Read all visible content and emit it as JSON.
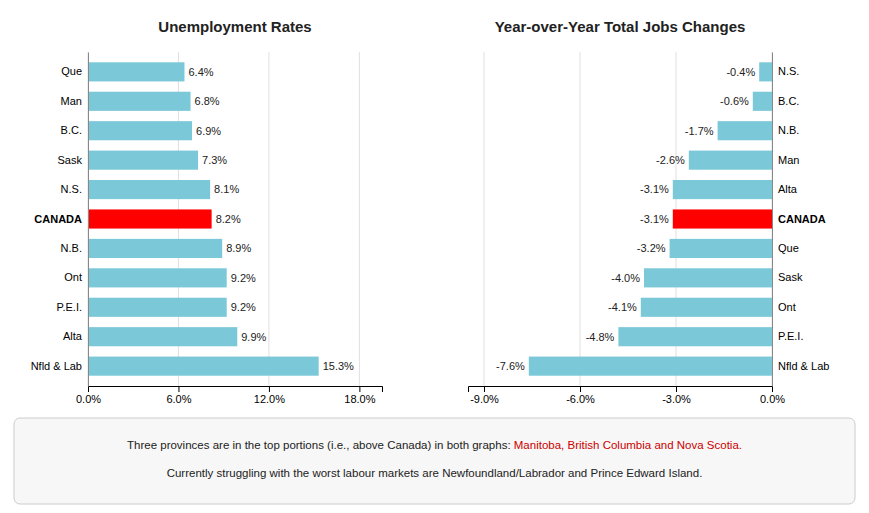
{
  "chart_data": [
    {
      "type": "bar",
      "orientation": "horizontal",
      "title": "Unemployment Rates",
      "categories": [
        "Que",
        "Man",
        "B.C.",
        "Sask",
        "N.S.",
        "CANADA",
        "N.B.",
        "Ont",
        "P.E.I.",
        "Alta",
        "Nfld & Lab"
      ],
      "values": [
        6.4,
        6.8,
        6.9,
        7.3,
        8.1,
        8.2,
        8.9,
        9.2,
        9.2,
        9.9,
        15.3
      ],
      "value_labels": [
        "6.4%",
        "6.8%",
        "6.9%",
        "7.3%",
        "8.1%",
        "8.2%",
        "8.9%",
        "9.2%",
        "9.2%",
        "9.9%",
        "15.3%"
      ],
      "colors": [
        "#7BC8D8",
        "#7BC8D8",
        "#7BC8D8",
        "#7BC8D8",
        "#7BC8D8",
        "#FF0000",
        "#7BC8D8",
        "#7BC8D8",
        "#7BC8D8",
        "#7BC8D8",
        "#7BC8D8"
      ],
      "xlim": [
        0,
        19.5
      ],
      "xticks": [
        {
          "value": 0,
          "label": "0.0%"
        },
        {
          "value": 6,
          "label": "6.0%"
        },
        {
          "value": 12,
          "label": "12.0%"
        },
        {
          "value": 18,
          "label": "18.0%"
        }
      ],
      "grid": true,
      "data_labels": true
    },
    {
      "type": "bar",
      "orientation": "horizontal",
      "title": "Year-over-Year Total Jobs Changes",
      "categories": [
        "N.S.",
        "B.C.",
        "N.B.",
        "Man",
        "Alta",
        "CANADA",
        "Que",
        "Sask",
        "Ont",
        "P.E.I.",
        "Nfld & Lab"
      ],
      "values": [
        -0.4,
        -0.6,
        -1.7,
        -2.6,
        -3.1,
        -3.1,
        -3.2,
        -4.0,
        -4.1,
        -4.8,
        -7.6
      ],
      "value_labels": [
        "-0.4%",
        "-0.6%",
        "-1.7%",
        "-2.6%",
        "-3.1%",
        "-3.1%",
        "-3.2%",
        "-4.0%",
        "-4.1%",
        "-4.8%",
        "-7.6%"
      ],
      "colors": [
        "#7BC8D8",
        "#7BC8D8",
        "#7BC8D8",
        "#7BC8D8",
        "#7BC8D8",
        "#FF0000",
        "#7BC8D8",
        "#7BC8D8",
        "#7BC8D8",
        "#7BC8D8",
        "#7BC8D8"
      ],
      "xlim": [
        -9.5,
        0
      ],
      "xticks": [
        {
          "value": -9,
          "label": "-9.0%"
        },
        {
          "value": -6,
          "label": "-6.0%"
        },
        {
          "value": -3,
          "label": "-3.0%"
        },
        {
          "value": 0,
          "label": "0.0%"
        }
      ],
      "grid": true,
      "data_labels": true,
      "annotations": [
        {
          "text": "Three provinces are in the top portions (i.e., above Canada) in both graphs: "
        },
        {
          "text": "Manitoba, British Columbia and Nova Scotia.",
          "color": "#CC0000"
        },
        {
          "text": "Currently struggling with the worst labour markets are Newfoundland/Labrador and Prince Edward Island."
        }
      ]
    }
  ]
}
